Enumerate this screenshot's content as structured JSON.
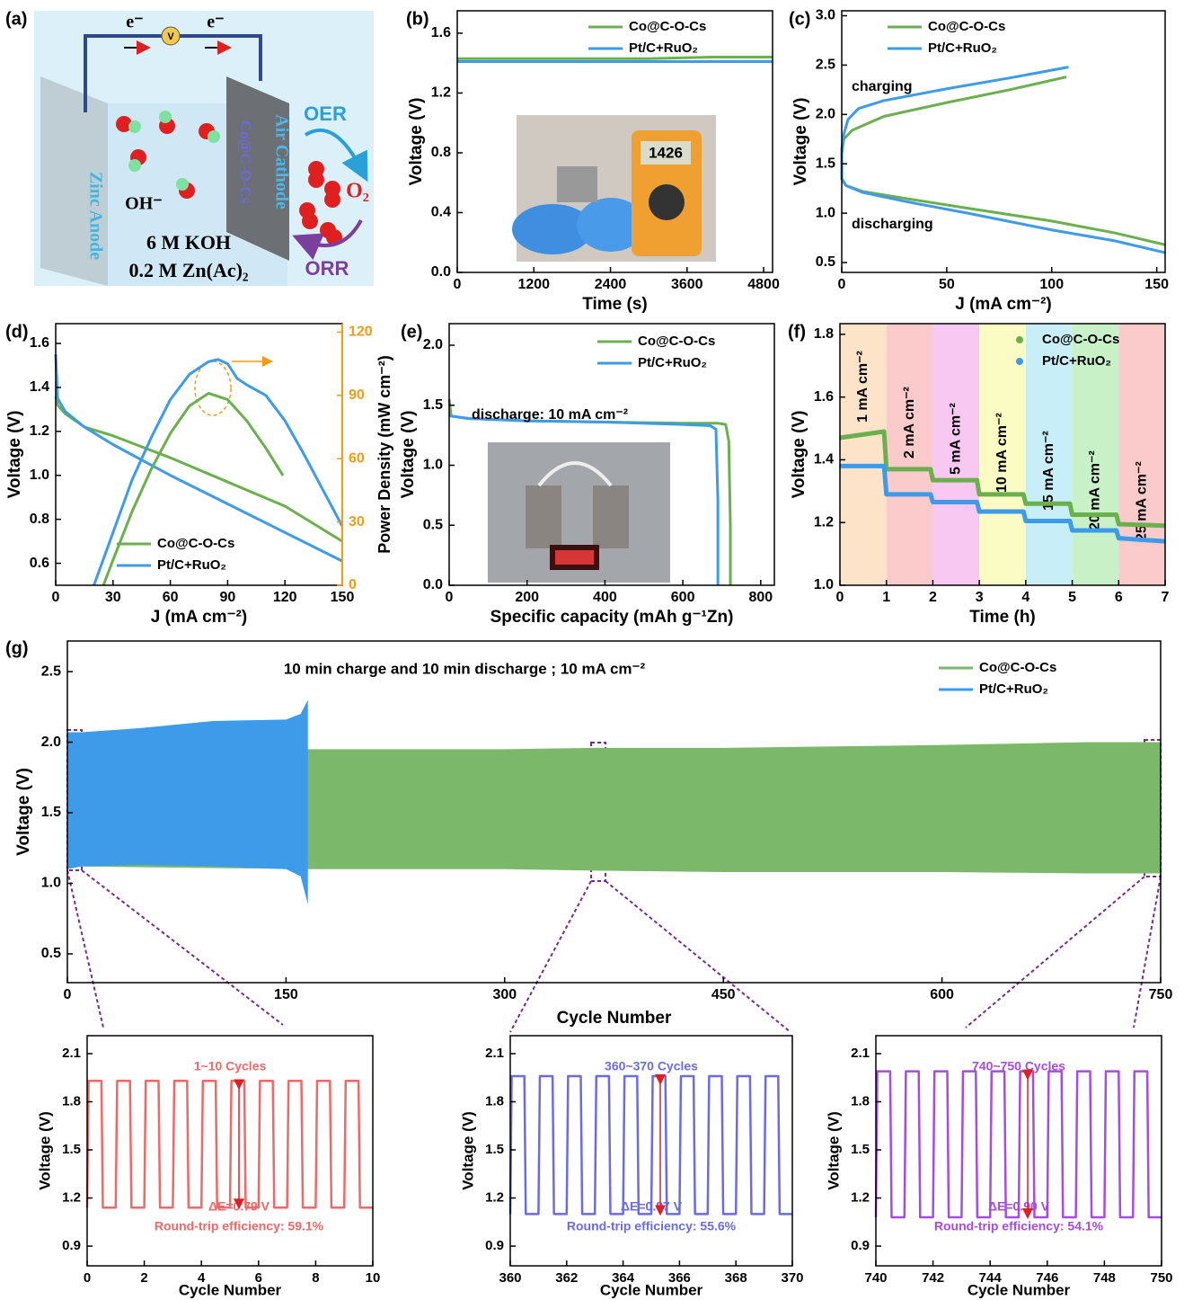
{
  "schematic": {
    "panel_label": "(a)",
    "electron_left": "e⁻",
    "electron_right": "e⁻",
    "meter": "V",
    "ion": "OH⁻",
    "electrolyte": "6 M KOH",
    "additive": "0.2 M Zn(Ac)₂",
    "anode": "Zinc Anode",
    "cathode": "Air Cathode",
    "catalyst": "Co@C-O-Cs",
    "oer": "OER",
    "orr": "ORR",
    "oxygen": "O₂"
  },
  "chart_data": [
    {
      "type": "line",
      "panel_label": "(b)",
      "xlabel": "Time (s)",
      "ylabel": "Voltage (V)",
      "inset_photo_text": "1426",
      "xlim": [
        0,
        4940
      ],
      "ylim": [
        0,
        1.75
      ],
      "xticks": [
        0,
        1200,
        2400,
        3600,
        4800
      ],
      "yticks": [
        {
          "value": 0,
          "label": "0.0"
        },
        0.4,
        0.8,
        1.2,
        1.6
      ],
      "series": [
        {
          "name": "Co@C-O-Cs",
          "color": "#6ab04c",
          "x": [
            0,
            1000,
            2000,
            3000,
            4000,
            4940
          ],
          "values": [
            1.43,
            1.43,
            1.43,
            1.43,
            1.44,
            1.44
          ]
        },
        {
          "name": "Pt/C+RuO₂",
          "color": "#3d9be9",
          "x": [
            0,
            1000,
            2000,
            3000,
            4000,
            4940
          ],
          "values": [
            1.41,
            1.41,
            1.41,
            1.41,
            1.41,
            1.41
          ]
        }
      ]
    },
    {
      "type": "line",
      "panel_label": "(c)",
      "xlabel": "J (mA cm⁻²)",
      "ylabel": "Voltage (V)",
      "annotations": [
        "charging",
        "discharging"
      ],
      "xlim": [
        0,
        154
      ],
      "ylim": [
        0.4,
        3.05
      ],
      "xticks": [
        0,
        50,
        100,
        150
      ],
      "yticks": [
        0.5,
        {
          "value": 1,
          "label": "1.0"
        },
        1.5,
        {
          "value": 2,
          "label": "2.0"
        },
        2.5,
        {
          "value": 3,
          "label": "3.0"
        }
      ],
      "series": [
        {
          "name": "Co@C-O-Cs",
          "color": "#6ab04c",
          "x": [
            107,
            80,
            50,
            20,
            5,
            1,
            0,
            0,
            2,
            10,
            30,
            60,
            100,
            130,
            154
          ],
          "values": [
            2.38,
            2.25,
            2.12,
            1.98,
            1.84,
            1.75,
            1.6,
            1.35,
            1.28,
            1.22,
            1.15,
            1.05,
            0.92,
            0.8,
            0.68
          ]
        },
        {
          "name": "Pt/C+RuO₂",
          "color": "#3d9be9",
          "x": [
            108,
            80,
            50,
            20,
            8,
            3,
            1,
            0,
            0,
            2,
            10,
            30,
            60,
            100,
            130,
            154
          ],
          "values": [
            2.48,
            2.37,
            2.26,
            2.14,
            2.06,
            1.95,
            1.8,
            1.65,
            1.35,
            1.28,
            1.21,
            1.12,
            1.0,
            0.83,
            0.72,
            0.6
          ]
        }
      ]
    },
    {
      "type": "line",
      "panel_label": "(d)",
      "xlabel": "J (mA cm⁻²)",
      "ylabel": "Voltage (V)",
      "y2label": "Power Density (mW cm⁻²)",
      "y2color": "#f39c12",
      "xlim": [
        0,
        150
      ],
      "ylim": [
        0.5,
        1.69
      ],
      "y2lim": [
        0,
        124
      ],
      "xticks": [
        0,
        30,
        60,
        90,
        120,
        150
      ],
      "yticks": [
        0.6,
        0.8,
        {
          "value": 1,
          "label": "1.0"
        },
        1.2,
        1.4,
        1.6
      ],
      "y2ticks": [
        0,
        30,
        60,
        90,
        120
      ],
      "series": [
        {
          "name": "Co@C-O-Cs",
          "color": "#6ab04c",
          "x": [
            0,
            1,
            5,
            15,
            30,
            60,
            90,
            120,
            150
          ],
          "values": [
            1.36,
            1.32,
            1.28,
            1.22,
            1.18,
            1.08,
            0.97,
            0.86,
            0.7
          ]
        },
        {
          "name": "Pt/C+RuO₂",
          "color": "#3d9be9",
          "x": [
            0,
            1,
            5,
            15,
            30,
            60,
            90,
            120,
            150
          ],
          "values": [
            1.55,
            1.35,
            1.29,
            1.22,
            1.14,
            1.0,
            0.87,
            0.74,
            0.61
          ]
        },
        {
          "color": "#6ab04c",
          "axis": "y2",
          "x": [
            25,
            30,
            40,
            50,
            60,
            70,
            80,
            90,
            100,
            110,
            119
          ],
          "values": [
            0,
            12,
            35,
            55,
            72,
            85,
            91,
            88,
            78,
            65,
            52
          ]
        },
        {
          "color": "#3d9be9",
          "axis": "y2",
          "x": [
            20,
            30,
            40,
            50,
            60,
            70,
            80,
            85,
            90,
            95,
            100,
            110,
            120,
            130,
            140,
            150
          ],
          "values": [
            0,
            25,
            50,
            70,
            88,
            100,
            106,
            107,
            105,
            98,
            95,
            90,
            78,
            62,
            45,
            28
          ]
        }
      ]
    },
    {
      "type": "line",
      "panel_label": "(e)",
      "xlabel": "Specific capacity (mAh g⁻¹Zn)",
      "ylabel": "Voltage (V)",
      "annotations": [
        "discharge: 10 mA cm⁻²"
      ],
      "xlim": [
        0,
        835
      ],
      "ylim": [
        0,
        2.18
      ],
      "xticks": [
        0,
        200,
        400,
        600,
        800
      ],
      "yticks": [
        {
          "value": 0,
          "label": "0.0"
        },
        0.5,
        {
          "value": 1,
          "label": "1.0"
        },
        1.5,
        {
          "value": 2,
          "label": "2.0"
        }
      ],
      "series": [
        {
          "name": "Co@C-O-Cs",
          "color": "#6ab04c",
          "x": [
            0,
            5,
            50,
            200,
            400,
            600,
            690,
            710,
            718,
            722,
            722
          ],
          "values": [
            1.55,
            1.41,
            1.39,
            1.37,
            1.36,
            1.35,
            1.35,
            1.34,
            1.2,
            0.5,
            0
          ]
        },
        {
          "name": "Pt/C+RuO₂",
          "color": "#3d9be9",
          "x": [
            0,
            5,
            50,
            200,
            400,
            600,
            670,
            685,
            690,
            690
          ],
          "values": [
            1.42,
            1.41,
            1.39,
            1.37,
            1.36,
            1.34,
            1.33,
            1.3,
            0.7,
            0
          ]
        }
      ]
    },
    {
      "type": "line",
      "panel_label": "(f)",
      "xlabel": "Time (h)",
      "ylabel": "Voltage (V)",
      "xlim": [
        0,
        7
      ],
      "ylim": [
        1,
        1.834
      ],
      "xticks": [
        0,
        1,
        2,
        3,
        4,
        5,
        6,
        7
      ],
      "yticks": [
        {
          "value": 1,
          "label": "1.0"
        },
        1.2,
        1.4,
        1.6,
        1.8
      ],
      "bands": [
        {
          "from": 0,
          "to": 1,
          "label": "1 mA cm⁻²",
          "color": "#fde3c8"
        },
        {
          "from": 1,
          "to": 2,
          "label": "2 mA cm⁻²",
          "color": "#fbcaca"
        },
        {
          "from": 2,
          "to": 3,
          "label": "5 mA cm⁻²",
          "color": "#f8c8f2"
        },
        {
          "from": 3,
          "to": 4,
          "label": "10 mA cm⁻²",
          "color": "#fbfbc4"
        },
        {
          "from": 4,
          "to": 5,
          "label": "15 mA cm⁻²",
          "color": "#c8eff7"
        },
        {
          "from": 5,
          "to": 6,
          "label": "20 mA cm⁻²",
          "color": "#c8f1c8"
        },
        {
          "from": 6,
          "to": 7,
          "label": "25 mA cm⁻²",
          "color": "#fbcaca"
        }
      ],
      "series": [
        {
          "name": "Co@C-O-Cs",
          "color": "#6ab04c",
          "x": [
            0,
            0.95,
            1,
            1.95,
            2,
            2.95,
            3,
            3.95,
            4,
            4.95,
            5,
            5.95,
            6,
            7
          ],
          "values": [
            1.47,
            1.49,
            1.37,
            1.37,
            1.335,
            1.335,
            1.29,
            1.29,
            1.26,
            1.26,
            1.225,
            1.225,
            1.195,
            1.19
          ]
        },
        {
          "name": "Pt/C+RuO₂",
          "color": "#3d9be9",
          "x": [
            0,
            0.95,
            1,
            1.95,
            2,
            2.95,
            3,
            3.95,
            4,
            4.95,
            5,
            5.95,
            6,
            7
          ],
          "values": [
            1.38,
            1.38,
            1.29,
            1.29,
            1.265,
            1.265,
            1.235,
            1.235,
            1.205,
            1.205,
            1.175,
            1.175,
            1.15,
            1.14
          ]
        }
      ]
    },
    {
      "type": "range",
      "panel_label": "(g)",
      "title": "10 min charge and 10 min discharge ; 10 mA cm⁻²",
      "xlabel": "Cycle Number",
      "ylabel": "Voltage (V)",
      "xlim": [
        0,
        750
      ],
      "ylim": [
        0.296,
        2.717
      ],
      "xticks": [
        0,
        150,
        300,
        450,
        600,
        750
      ],
      "yticks": [
        0.5,
        {
          "value": 1,
          "label": "1.0"
        },
        1.5,
        {
          "value": 2,
          "label": "2.0"
        },
        2.5
      ],
      "series": [
        {
          "name": "Co@C-O-Cs",
          "color": "#7cb86a",
          "x": [
            0,
            170,
            300,
            360,
            450,
            600,
            700,
            750
          ],
          "upper": [
            1.95,
            1.95,
            1.95,
            1.96,
            1.96,
            1.98,
            2.0,
            2.0
          ],
          "lower": [
            1.12,
            1.1,
            1.1,
            1.09,
            1.08,
            1.08,
            1.07,
            1.07
          ]
        },
        {
          "name": "Pt/C+RuO₂",
          "color": "#3d9be9",
          "x": [
            0,
            10,
            50,
            100,
            150,
            160,
            165
          ],
          "upper": [
            2.07,
            2.07,
            2.1,
            2.15,
            2.16,
            2.2,
            2.3
          ],
          "lower": [
            1.1,
            1.12,
            1.13,
            1.12,
            1.1,
            1.05,
            0.85
          ]
        }
      ]
    },
    {
      "type": "line",
      "xlabel": "Cycle Number",
      "ylabel": "Voltage (V)",
      "annotation_color": "#f06868",
      "annotations": [
        "1~10 Cycles",
        "ΔE=0.79 V",
        "Round-trip efficiency: 59.1%"
      ],
      "xlim": [
        0,
        10
      ],
      "ylim": [
        0.777,
        2.212
      ],
      "xticks": [
        0,
        2,
        4,
        6,
        8,
        10
      ],
      "yticks": [
        0.9,
        1.2,
        1.5,
        1.8,
        2.1
      ],
      "series": [
        {
          "color": "#f06868",
          "x": [
            0,
            0.05,
            0.5,
            0.55,
            1,
            1.05,
            1.5,
            1.55,
            2,
            2.05,
            2.5,
            2.55,
            3,
            3.05,
            3.5,
            3.55,
            4,
            4.05,
            4.5,
            4.55,
            5,
            5.05,
            5.5,
            5.55,
            6,
            6.05,
            6.5,
            6.55,
            7,
            7.05,
            7.5,
            7.55,
            8,
            8.05,
            8.5,
            8.55,
            9,
            9.05,
            9.5,
            9.55,
            10
          ],
          "values": [
            1.14,
            1.93,
            1.93,
            1.14,
            1.14,
            1.93,
            1.93,
            1.14,
            1.14,
            1.93,
            1.93,
            1.14,
            1.14,
            1.93,
            1.93,
            1.14,
            1.14,
            1.93,
            1.93,
            1.14,
            1.14,
            1.93,
            1.93,
            1.14,
            1.14,
            1.93,
            1.93,
            1.14,
            1.14,
            1.93,
            1.93,
            1.14,
            1.14,
            1.93,
            1.93,
            1.14,
            1.14,
            1.93,
            1.93,
            1.14,
            1.14
          ]
        }
      ]
    },
    {
      "type": "line",
      "xlabel": "Cycle Number",
      "ylabel": "Voltage (V)",
      "annotation_color": "#6b6bea",
      "annotations": [
        "360~370 Cycles",
        "ΔE=0.87 V",
        "Round-trip efficiency: 55.6%"
      ],
      "xlim": [
        360,
        370
      ],
      "ylim": [
        0.777,
        2.212
      ],
      "xticks": [
        360,
        362,
        364,
        366,
        368,
        370
      ],
      "yticks": [
        0.9,
        1.2,
        1.5,
        1.8,
        2.1
      ],
      "series": [
        {
          "color": "#6b6bea",
          "x": [
            360,
            360.05,
            360.5,
            360.55,
            361,
            361.05,
            361.5,
            361.55,
            362,
            362.05,
            362.5,
            362.55,
            363,
            363.05,
            363.5,
            363.55,
            364,
            364.05,
            364.5,
            364.55,
            365,
            365.05,
            365.5,
            365.55,
            366,
            366.05,
            366.5,
            366.55,
            367,
            367.05,
            367.5,
            367.55,
            368,
            368.05,
            368.5,
            368.55,
            369,
            369.05,
            369.5,
            369.55,
            370
          ],
          "values": [
            1.1,
            1.96,
            1.96,
            1.1,
            1.1,
            1.96,
            1.96,
            1.1,
            1.1,
            1.96,
            1.96,
            1.1,
            1.1,
            1.96,
            1.96,
            1.1,
            1.1,
            1.96,
            1.96,
            1.1,
            1.1,
            1.96,
            1.96,
            1.1,
            1.1,
            1.96,
            1.96,
            1.1,
            1.1,
            1.96,
            1.96,
            1.1,
            1.1,
            1.96,
            1.96,
            1.1,
            1.1,
            1.96,
            1.96,
            1.1,
            1.1
          ]
        }
      ]
    },
    {
      "type": "line",
      "xlabel": "Cycle Number",
      "ylabel": "Voltage (V)",
      "annotation_color": "#a44de0",
      "annotations": [
        "740~750 Cycles",
        "ΔE=0.90 V",
        "Round-trip efficiency: 54.1%"
      ],
      "xlim": [
        740,
        750
      ],
      "ylim": [
        0.777,
        2.212
      ],
      "xticks": [
        740,
        742,
        744,
        746,
        748,
        750
      ],
      "yticks": [
        0.9,
        1.2,
        1.5,
        1.8,
        2.1
      ],
      "series": [
        {
          "color": "#a44de0",
          "x": [
            740,
            740.05,
            740.5,
            740.55,
            741,
            741.05,
            741.5,
            741.55,
            742,
            742.05,
            742.5,
            742.55,
            743,
            743.05,
            743.5,
            743.55,
            744,
            744.05,
            744.5,
            744.55,
            745,
            745.05,
            745.5,
            745.55,
            746,
            746.05,
            746.5,
            746.55,
            747,
            747.05,
            747.5,
            747.55,
            748,
            748.05,
            748.5,
            748.55,
            749,
            749.05,
            749.5,
            749.55,
            750
          ],
          "values": [
            1.08,
            1.99,
            1.99,
            1.08,
            1.08,
            1.99,
            1.99,
            1.08,
            1.08,
            1.99,
            1.99,
            1.08,
            1.08,
            1.99,
            1.99,
            1.08,
            1.08,
            1.99,
            1.99,
            1.08,
            1.08,
            1.99,
            1.99,
            1.08,
            1.08,
            1.99,
            1.99,
            1.08,
            1.08,
            1.99,
            1.99,
            1.08,
            1.08,
            1.99,
            1.99,
            1.08,
            1.08,
            1.99,
            1.99,
            1.08,
            1.08
          ]
        }
      ]
    }
  ]
}
